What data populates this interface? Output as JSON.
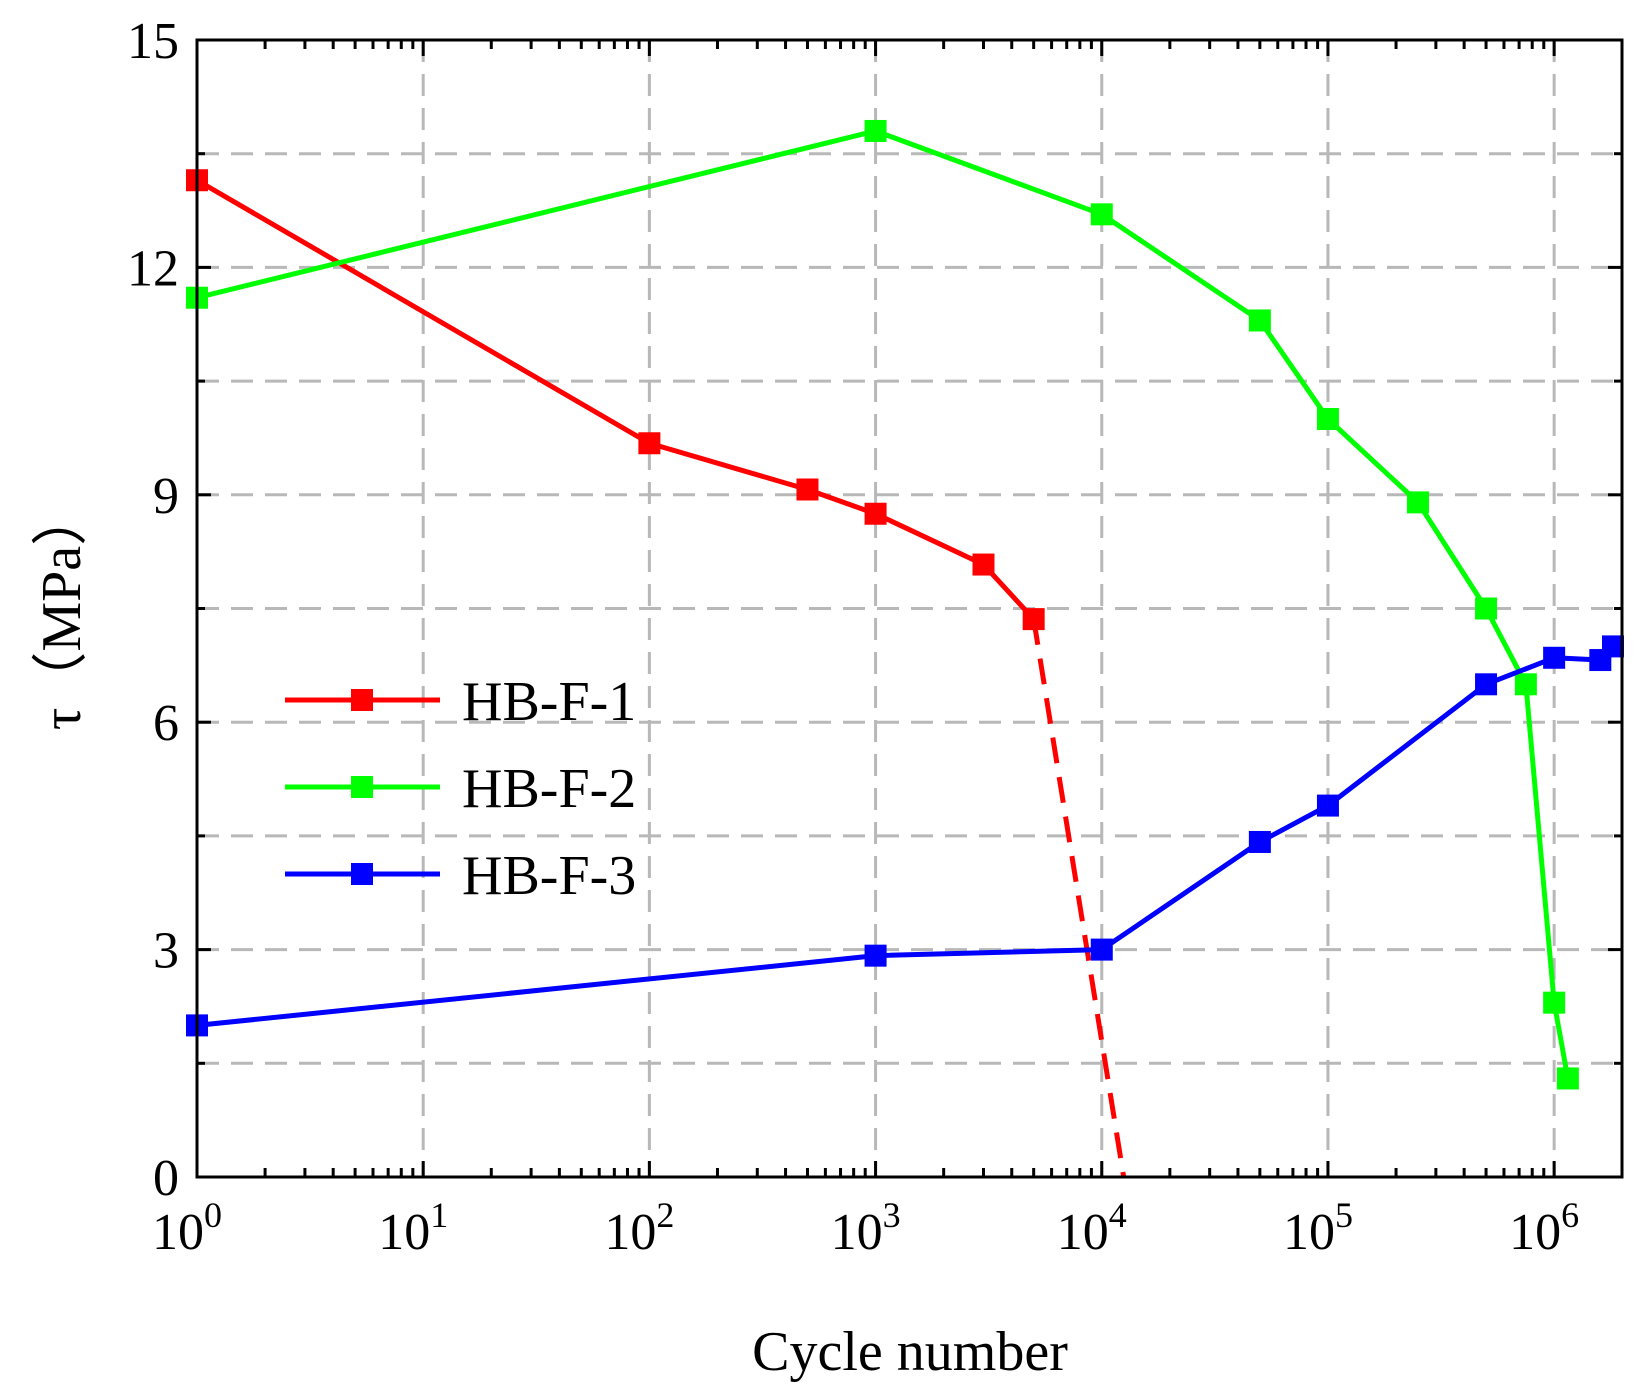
{
  "chart_data": {
    "type": "line",
    "xscale": "log10",
    "xlim_exp": [
      0,
      6.3
    ],
    "xlim": [
      1,
      1995262
    ],
    "ylim": [
      0,
      15
    ],
    "xlabel": "Cycle number",
    "ylabel_symbol": "τ",
    "ylabel_unit": "（MPa）",
    "yticks": [
      0,
      3,
      6,
      9,
      12,
      15
    ],
    "ytick_labels": [
      "0",
      "3",
      "6",
      "9",
      "12",
      "15"
    ],
    "ygrid_minor": [
      1.5,
      4.5,
      7.5,
      10.5,
      13.5
    ],
    "xticks_exp": [
      0,
      1,
      2,
      3,
      4,
      5,
      6
    ],
    "xtick_base": "10",
    "xtick_exponents": [
      "0",
      "1",
      "2",
      "3",
      "4",
      "5",
      "6"
    ],
    "grid": true,
    "legend_position": "middle-left",
    "series": [
      {
        "name": "HB-F-1",
        "color": "#ff0000",
        "x": [
          1,
          100,
          500,
          1000,
          3000,
          5000
        ],
        "y": [
          13.15,
          9.68,
          9.07,
          8.75,
          8.08,
          7.36
        ],
        "extrapolation": {
          "style": "dashed",
          "x": [
            5000,
            12500
          ],
          "y": [
            7.36,
            0
          ]
        }
      },
      {
        "name": "HB-F-2",
        "color": "#00ff00",
        "x": [
          1,
          1000,
          10000,
          50000,
          100000,
          250000,
          500000,
          750000,
          1000000,
          1150000
        ],
        "y": [
          11.6,
          13.8,
          12.7,
          11.3,
          10.0,
          8.9,
          7.5,
          6.5,
          2.3,
          1.3
        ]
      },
      {
        "name": "HB-F-3",
        "color": "#0000ff",
        "x": [
          1,
          1000,
          10000,
          50000,
          100000,
          500000,
          1000000,
          1600000,
          2000000
        ],
        "y": [
          2.0,
          2.92,
          3.0,
          4.42,
          4.9,
          6.5,
          6.85,
          6.82,
          7.0
        ]
      }
    ]
  }
}
